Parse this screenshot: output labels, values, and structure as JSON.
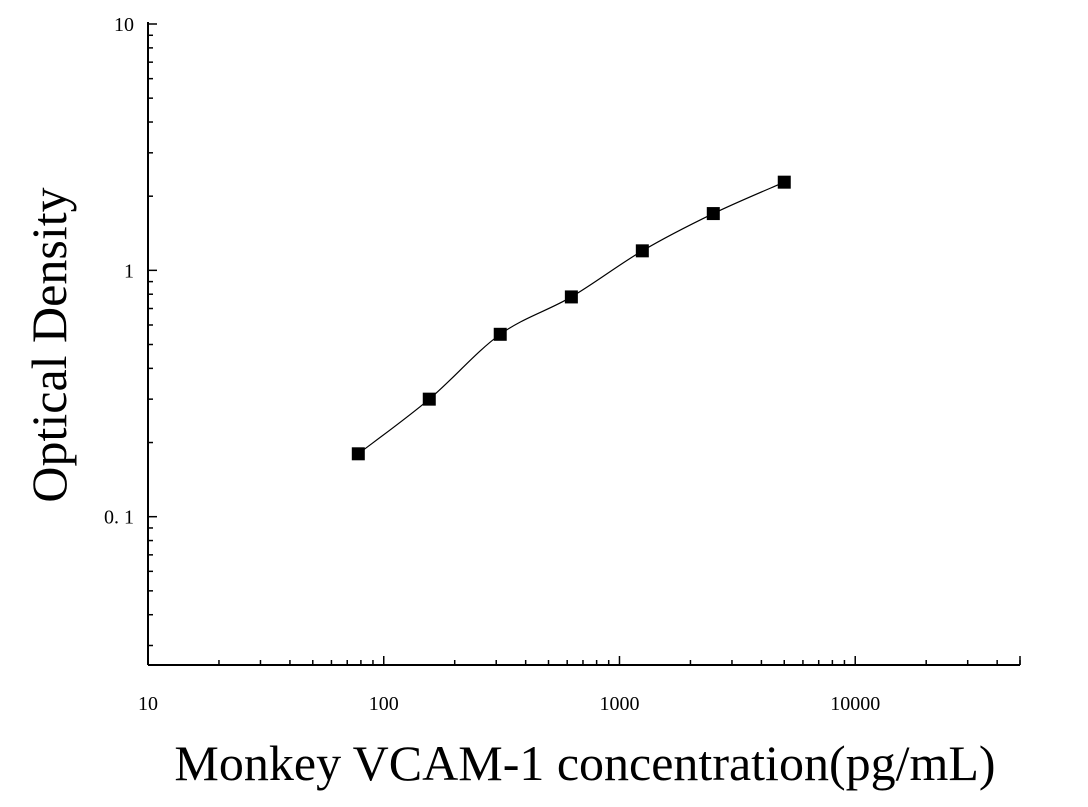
{
  "chart_data": {
    "type": "scatter",
    "xlabel": "Monkey VCAM-1 concentration(pg/mL)",
    "ylabel": "Optical Density",
    "x_scale": "log",
    "y_scale": "log",
    "xlim": [
      10,
      50000
    ],
    "ylim": [
      0.025,
      10
    ],
    "x_ticks": [
      {
        "value": 10,
        "label": "10"
      },
      {
        "value": 100,
        "label": "100"
      },
      {
        "value": 1000,
        "label": "1000"
      },
      {
        "value": 10000,
        "label": "10000"
      }
    ],
    "y_ticks": [
      {
        "value": 0.1,
        "label": "0. 1"
      },
      {
        "value": 1,
        "label": "1"
      },
      {
        "value": 10,
        "label": "10"
      }
    ],
    "grid": false,
    "legend": "none",
    "series": [
      {
        "marker": "square",
        "color": "#000000",
        "fit_line": true,
        "points": [
          {
            "x": 78,
            "y": 0.18
          },
          {
            "x": 156,
            "y": 0.3
          },
          {
            "x": 312,
            "y": 0.55
          },
          {
            "x": 625,
            "y": 0.78
          },
          {
            "x": 1250,
            "y": 1.2
          },
          {
            "x": 2500,
            "y": 1.7
          },
          {
            "x": 5000,
            "y": 2.28
          }
        ]
      }
    ]
  }
}
